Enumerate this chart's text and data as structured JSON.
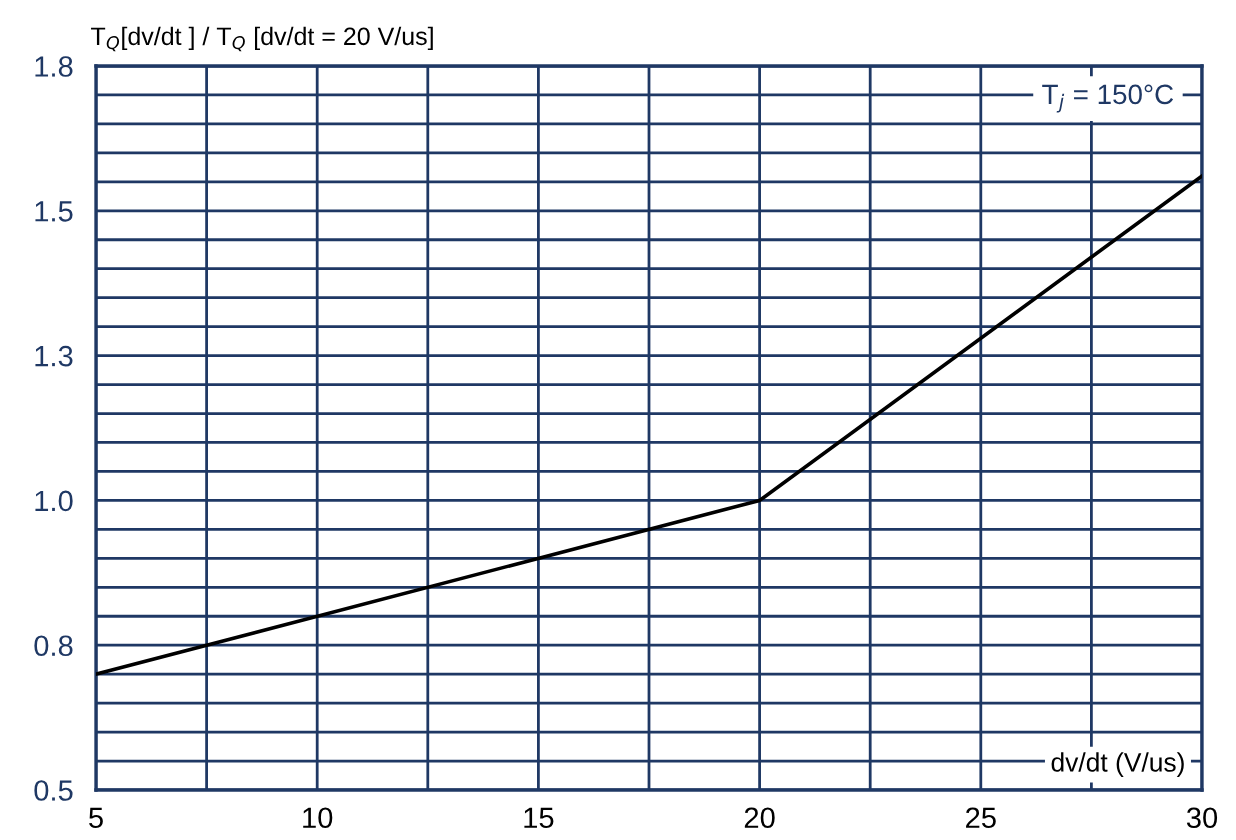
{
  "chart_data": {
    "type": "line",
    "ylabel": "T$_{Q}$[dv/dt ] / T$_{Q}$ [dv/dt = 20 V/us]",
    "xlabel": "dv/dt (V/us)",
    "annotations": [
      "T$_{j}$ = 150°C"
    ],
    "x": [
      5,
      20,
      30
    ],
    "series": [
      {
        "color": "#000000",
        "values": [
          0.7,
          1.0,
          1.56
        ]
      }
    ],
    "xlim": [
      5,
      30
    ],
    "ylim": [
      0.5,
      1.75
    ],
    "xticks": [
      5,
      {
        "value": 7.5,
        "label": null
      },
      10,
      {
        "value": 12.5,
        "label": null
      },
      15,
      {
        "value": 17.5,
        "label": null
      },
      20,
      {
        "value": 22.5,
        "label": null
      },
      25,
      {
        "value": 27.5,
        "label": null
      },
      30
    ],
    "yticks": [
      0.5,
      {
        "value": 0.55,
        "label": null
      },
      {
        "value": 0.6,
        "label": null
      },
      {
        "value": 0.65,
        "label": null
      },
      {
        "value": 0.7,
        "label": null
      },
      {
        "value": 0.75,
        "label": "0.8"
      },
      {
        "value": 0.8,
        "label": null
      },
      {
        "value": 0.85,
        "label": null
      },
      {
        "value": 0.9,
        "label": null
      },
      {
        "value": 0.95,
        "label": null
      },
      {
        "value": 1.0,
        "label": "1.0"
      },
      {
        "value": 1.05,
        "label": null
      },
      {
        "value": 1.1,
        "label": null
      },
      {
        "value": 1.15,
        "label": null
      },
      {
        "value": 1.2,
        "label": null
      },
      {
        "value": 1.25,
        "label": "1.3"
      },
      {
        "value": 1.3,
        "label": null
      },
      {
        "value": 1.35,
        "label": null
      },
      {
        "value": 1.4,
        "label": null
      },
      {
        "value": 1.45,
        "label": null
      },
      {
        "value": 1.5,
        "label": "1.5"
      },
      {
        "value": 1.55,
        "label": null
      },
      {
        "value": 1.6,
        "label": null
      },
      {
        "value": 1.65,
        "label": null
      },
      {
        "value": 1.7,
        "label": null
      },
      {
        "value": 1.75,
        "label": "1.8"
      }
    ],
    "grid": true,
    "marker": "none",
    "line_style": "solid"
  }
}
